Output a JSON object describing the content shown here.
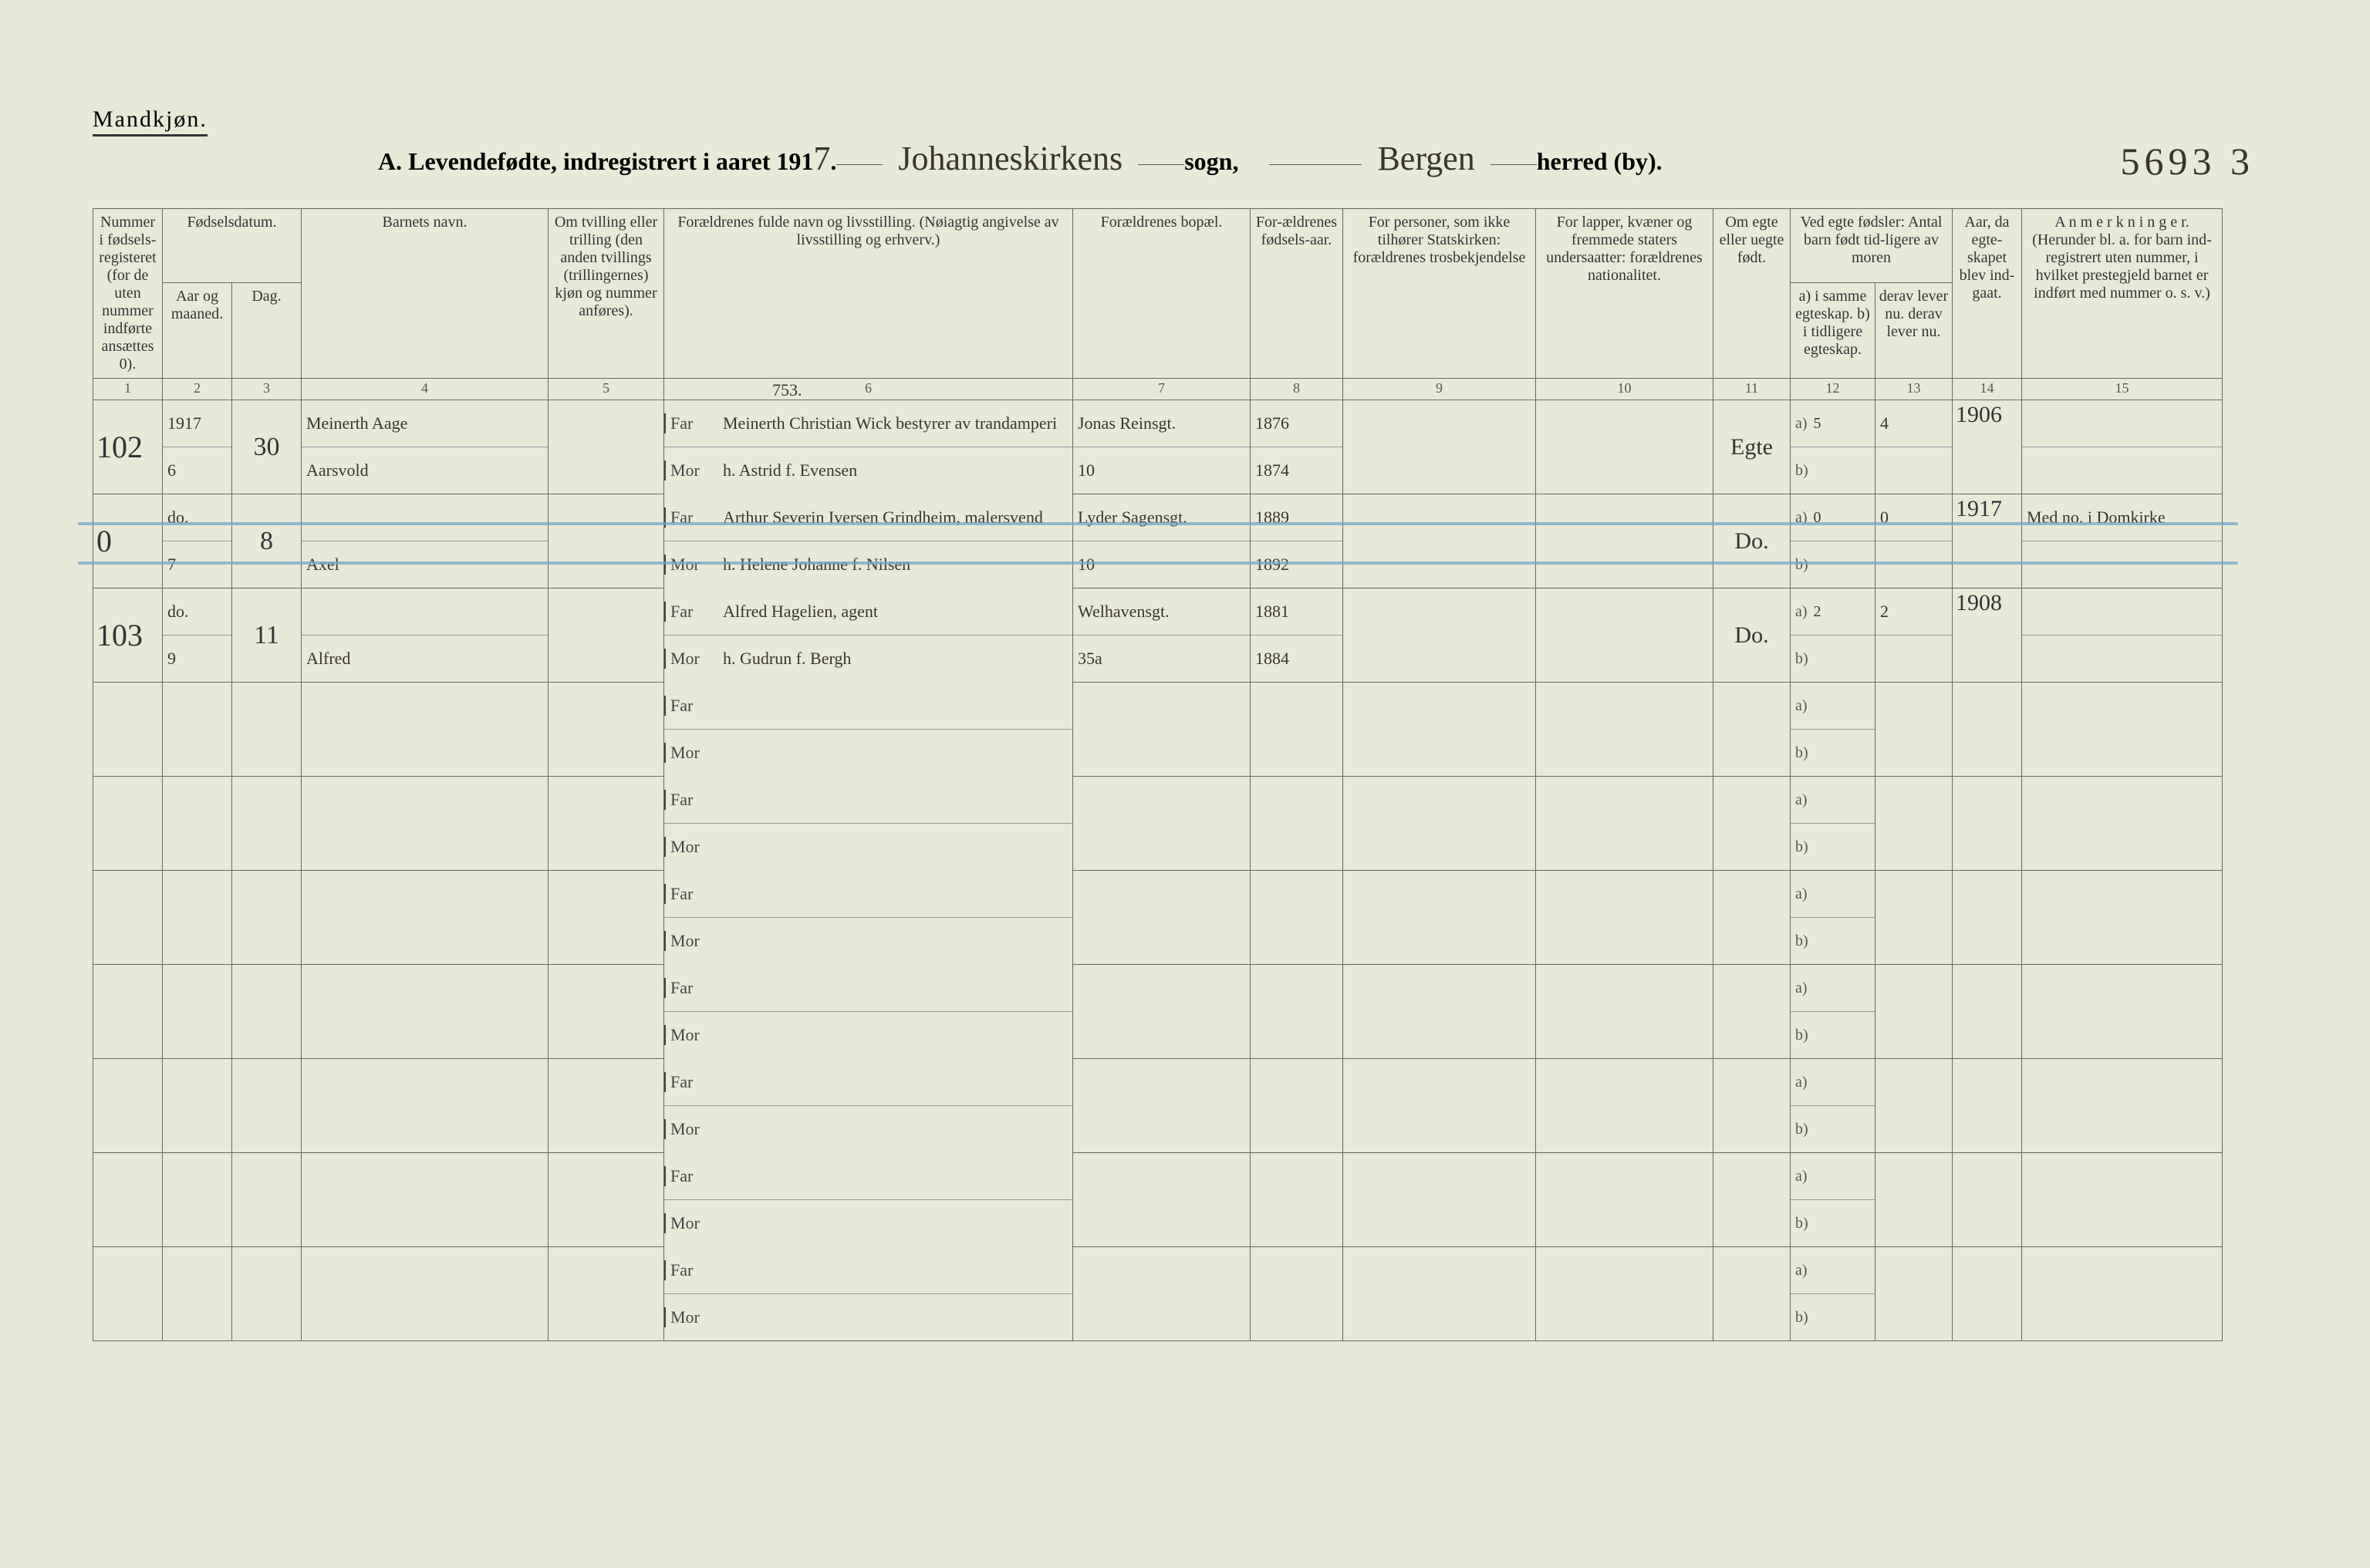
{
  "colors": {
    "page_bg": "#e8ead8",
    "ink": "#3a352a",
    "rule": "#666666",
    "strike": "#6fa7c7"
  },
  "header": {
    "gender": "Mandkjøn.",
    "title_prefix": "A.  Levendefødte, indregistrert i aaret 191",
    "year_digit": "7",
    "sogn_hand": "Johanneskirkens",
    "sogn_label": "sogn,",
    "herred_hand": "Bergen",
    "herred_label": "herred (by).",
    "page_id": "5693 3"
  },
  "columns": {
    "c1": "Nummer i fødsels-registeret (for de uten nummer indførte ansættes 0).",
    "c2_group": "Fødselsdatum.",
    "c2a": "Aar og maaned.",
    "c2b": "Dag.",
    "c4": "Barnets navn.",
    "c5": "Om tvilling eller trilling (den anden tvillings (trillingernes) kjøn og nummer anføres).",
    "c6": "Forældrenes fulde navn og livsstilling. (Nøiagtig angivelse av livsstilling og erhverv.)",
    "c7": "Forældrenes bopæl.",
    "c8": "For-ældrenes fødsels-aar.",
    "c9": "For personer, som ikke tilhører Statskirken: forældrenes trosbekjendelse",
    "c10": "For lapper, kvæner og fremmede staters undersaatter: forældrenes nationalitet.",
    "c11": "Om egte eller uegte født.",
    "c12_group": "Ved egte fødsler: Antal barn født tid-ligere av moren",
    "c12a": "a) i samme egteskap. b) i tidligere egteskap.",
    "c12b": "derav lever nu. derav lever nu.",
    "c14": "Aar, da egte-skapet blev ind-gaat.",
    "c15": "A n m e r k n i n g e r. (Herunder bl. a. for barn ind-registrert uten nummer, i hvilket prestegjeld barnet er indført med nummer o. s. v.)"
  },
  "colnums": [
    "1",
    "2",
    "3",
    "4",
    "5",
    "6",
    "7",
    "8",
    "9",
    "10",
    "11",
    "12",
    "13",
    "14",
    "15"
  ],
  "far_label": "Far",
  "mor_label": "Mor",
  "a_label": "a)",
  "b_label": "b)",
  "col6_annot": "753.",
  "rows": [
    {
      "num": "102",
      "aar_top": "1917",
      "aar_bot": "6",
      "dag": "30",
      "navn_top": "Meinerth Aage",
      "navn_bot": "Aarsvold",
      "far": "Meinerth Christian Wick  bestyrer av trandamperi",
      "mor": "h. Astrid f. Evensen",
      "bopel_far": "Jonas Reinsgt.",
      "bopel_mor": "10",
      "faar_far": "1876",
      "faar_mor": "1874",
      "egte": "Egte",
      "a_val": "5",
      "b_val": "",
      "lever_a": "4",
      "lever_b": "",
      "egteskap_aar": "1906",
      "anm": "",
      "struck": false
    },
    {
      "num": "0",
      "aar_top": "do.",
      "aar_bot": "7",
      "dag": "8",
      "navn_top": "",
      "navn_bot": "Axel",
      "far": "Arthur Severin Iversen  Grindheim, malersvend",
      "mor": "h. Helene Johanne f. Nilsen",
      "bopel_far": "Lyder Sagensgt.",
      "bopel_mor": "10",
      "faar_far": "1889",
      "faar_mor": "1892",
      "egte": "Do.",
      "a_val": "0",
      "b_val": "",
      "lever_a": "0",
      "lever_b": "",
      "egteskap_aar": "1917",
      "anm": "Med no. i Domkirke",
      "struck": true
    },
    {
      "num": "103",
      "aar_top": "do.",
      "aar_bot": "9",
      "dag": "11",
      "navn_top": "",
      "navn_bot": "Alfred",
      "far": "Alfred Hagelien, agent",
      "mor": "h. Gudrun f. Bergh",
      "bopel_far": "Welhavensgt.",
      "bopel_mor": "35a",
      "faar_far": "1881",
      "faar_mor": "1884",
      "egte": "Do.",
      "a_val": "2",
      "b_val": "",
      "lever_a": "2",
      "lever_b": "",
      "egteskap_aar": "1908",
      "anm": "",
      "struck": false
    }
  ],
  "blank_row_count": 7
}
